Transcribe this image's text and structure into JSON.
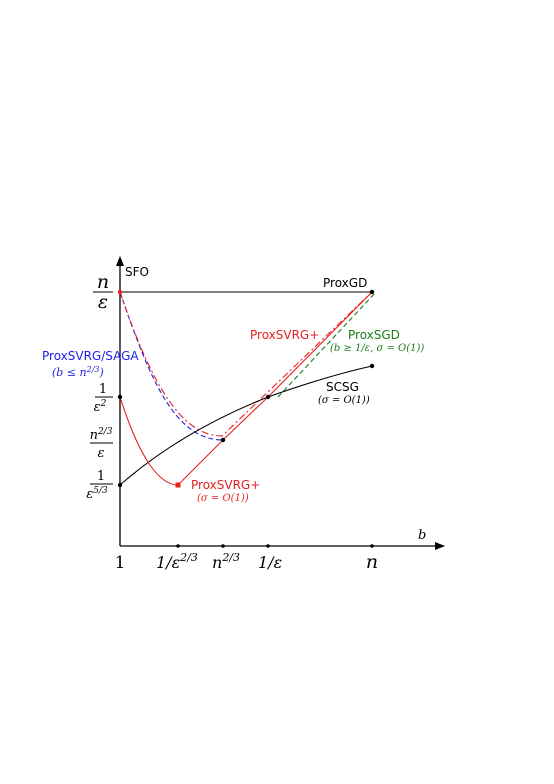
{
  "chart_data": {
    "type": "line",
    "title": "",
    "xlabel": "b",
    "ylabel": "SFO",
    "grid": false,
    "legend": "none",
    "x_scale": "log (schematic)",
    "y_scale": "log (schematic)",
    "x_ticks": [
      {
        "id": "one",
        "label": "1"
      },
      {
        "id": "eps23",
        "label": "1/ε^{2/3}"
      },
      {
        "id": "n23",
        "label": "n^{2/3}"
      },
      {
        "id": "eps",
        "label": "1/ε"
      },
      {
        "id": "n",
        "label": "n"
      }
    ],
    "y_ticks": [
      {
        "id": "n_eps",
        "num": "n",
        "den": "ε"
      },
      {
        "id": "eps2",
        "num": "1",
        "den": "ε^2"
      },
      {
        "id": "n23_eps",
        "num": "n^{2/3}",
        "den": "ε"
      },
      {
        "id": "eps53",
        "num": "1",
        "den": "ε^{5/3}"
      }
    ],
    "series": [
      {
        "name": "ProxGD",
        "color": "#000000",
        "dash": "solid",
        "points": [
          [
            "one",
            "n_eps"
          ],
          [
            "n",
            "n_eps"
          ]
        ]
      },
      {
        "name": "ProxSVRG/SAGA",
        "condition": "(b ≤ n^{2/3})",
        "color": "#1f1fe6",
        "dash": "dashed",
        "shape": "curve",
        "points": [
          [
            "one",
            "n_eps"
          ],
          [
            "n23",
            "n23_eps"
          ]
        ]
      },
      {
        "name": "ProxSVRG+",
        "color": "#e62020",
        "dash": "dashdot",
        "shape": "curve",
        "points": [
          [
            "one",
            "n_eps"
          ],
          [
            "n23",
            "n23_eps"
          ],
          [
            "n",
            "n_eps"
          ]
        ]
      },
      {
        "name": "ProxSGD",
        "condition": "(b ≥ 1/ε, σ = O(1))",
        "color": "#1a7a1a",
        "dash": "dashed",
        "points": [
          [
            "eps",
            "eps2"
          ],
          [
            "n",
            "n_eps"
          ]
        ]
      },
      {
        "name": "SCSG",
        "condition": "(σ = O(1))",
        "color": "#000000",
        "dash": "solid",
        "shape": "curve",
        "points": [
          [
            "one",
            "eps53"
          ],
          [
            "eps",
            "eps2"
          ],
          [
            "n",
            "slightly above 1/ε^2"
          ]
        ]
      },
      {
        "name": "ProxSVRG+",
        "condition": "(σ = O(1))",
        "color": "#e62020",
        "dash": "solid",
        "shape": "curve",
        "points": [
          [
            "one",
            "eps2"
          ],
          [
            "eps23",
            "eps53"
          ],
          [
            "n23",
            "n23_eps"
          ],
          [
            "eps",
            "eps2"
          ],
          [
            "n",
            "n_eps"
          ]
        ]
      }
    ],
    "annotations": [
      {
        "text": "ProxGD",
        "color": "#000000"
      },
      {
        "text": "ProxSVRG/SAGA",
        "color": "#1f1fe6"
      },
      {
        "text": "(b ≤ n^{2/3})",
        "color": "#1f1fe6"
      },
      {
        "text": "ProxSVRG+",
        "color": "#e62020"
      },
      {
        "text": "ProxSGD",
        "color": "#1a7a1a"
      },
      {
        "text": "(b ≥ 1/ε, σ = O(1))",
        "color": "#1a7a1a"
      },
      {
        "text": "SCSG",
        "color": "#000000"
      },
      {
        "text": "(σ = O(1))",
        "color": "#000000"
      },
      {
        "text": "ProxSVRG+",
        "color": "#e62020"
      },
      {
        "text": "(σ = O(1))",
        "color": "#e62020"
      }
    ]
  }
}
